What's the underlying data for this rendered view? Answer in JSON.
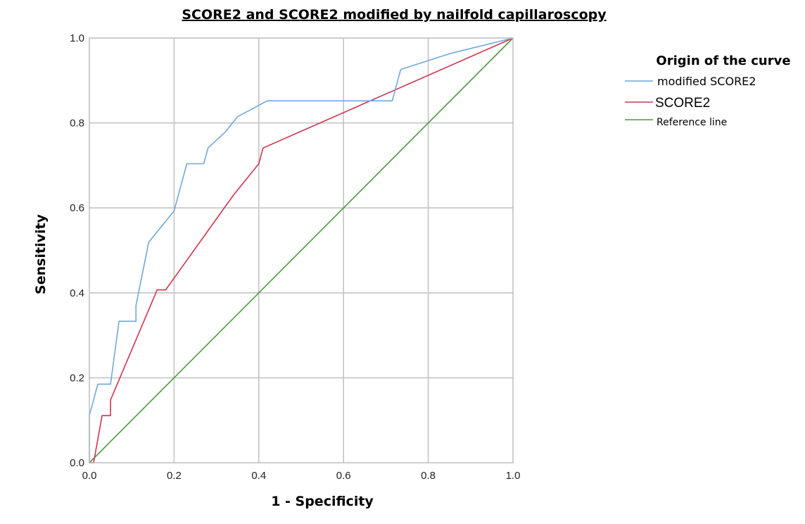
{
  "chart_data": {
    "type": "line",
    "title": "SCORE2 and SCORE2 modified by nailfold capillaroscopy",
    "xlabel": "1 - Specificity",
    "ylabel": "Sensitivity",
    "xlim": [
      0,
      1
    ],
    "ylim": [
      0,
      1
    ],
    "x_ticks": [
      "0.0",
      "0.2",
      "0.4",
      "0.6",
      "0.8",
      "1.0"
    ],
    "y_ticks": [
      "0.0",
      "0.2",
      "0.4",
      "0.6",
      "0.8",
      "1.0"
    ],
    "grid": true,
    "legend": {
      "title": "Origin of the curve",
      "placement": "right"
    },
    "series": [
      {
        "name": "modified SCORE2",
        "color": "#6fa8dc",
        "points": [
          [
            0.0,
            0.0
          ],
          [
            0.0,
            0.111
          ],
          [
            0.02,
            0.185
          ],
          [
            0.05,
            0.185
          ],
          [
            0.07,
            0.333
          ],
          [
            0.11,
            0.333
          ],
          [
            0.11,
            0.37
          ],
          [
            0.14,
            0.519
          ],
          [
            0.2,
            0.593
          ],
          [
            0.23,
            0.704
          ],
          [
            0.27,
            0.704
          ],
          [
            0.28,
            0.741
          ],
          [
            0.32,
            0.778
          ],
          [
            0.35,
            0.815
          ],
          [
            0.42,
            0.852
          ],
          [
            0.715,
            0.852
          ],
          [
            0.735,
            0.926
          ],
          [
            0.85,
            0.963
          ],
          [
            1.0,
            1.0
          ]
        ]
      },
      {
        "name": "SCORE2",
        "color": "#d0344f",
        "points": [
          [
            0.0,
            0.0
          ],
          [
            0.01,
            0.0
          ],
          [
            0.03,
            0.111
          ],
          [
            0.05,
            0.111
          ],
          [
            0.05,
            0.148
          ],
          [
            0.16,
            0.407
          ],
          [
            0.18,
            0.407
          ],
          [
            0.34,
            0.63
          ],
          [
            0.4,
            0.704
          ],
          [
            0.41,
            0.741
          ],
          [
            1.0,
            1.0
          ]
        ]
      },
      {
        "name": "Reference line",
        "color": "#4a9a3c",
        "points": [
          [
            0.0,
            0.0
          ],
          [
            1.0,
            1.0
          ]
        ]
      }
    ]
  }
}
